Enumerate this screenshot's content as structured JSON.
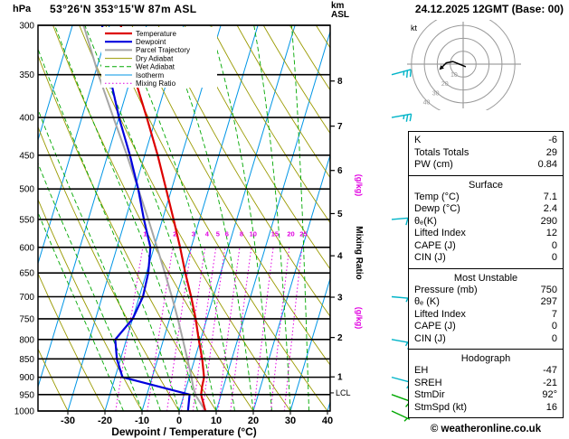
{
  "header": {
    "station": "53°26'N 353°15'W 87m ASL",
    "datetime": "24.12.2025 12GMT (Base: 00)",
    "left_unit": "hPa",
    "right_unit_line1": "km",
    "right_unit_line2": "ASL"
  },
  "footer": {
    "xlabel": "Dewpoint / Temperature (°C)",
    "copyright": "© weatheronline.co.uk"
  },
  "legend": {
    "items": [
      {
        "label": "Temperature",
        "color": "#dd0000",
        "style": "solid",
        "width": 2.2
      },
      {
        "label": "Dewpoint",
        "color": "#0000dd",
        "style": "solid",
        "width": 2.2
      },
      {
        "label": "Parcel Trajectory",
        "color": "#a6a6a6",
        "style": "solid",
        "width": 2
      },
      {
        "label": "Dry Adiabat",
        "color": "#9a9a00",
        "style": "solid",
        "width": 1
      },
      {
        "label": "Wet Adiabat",
        "color": "#00a800",
        "style": "dashed",
        "width": 1
      },
      {
        "label": "Isotherm",
        "color": "#0096e6",
        "style": "solid",
        "width": 1
      },
      {
        "label": "Mixing Ratio",
        "color": "#e100e1",
        "style": "dotted",
        "width": 1
      }
    ]
  },
  "chart_data": {
    "type": "skewt-logp",
    "pressure_axis_hpa": [
      300,
      350,
      400,
      450,
      500,
      550,
      600,
      650,
      700,
      750,
      800,
      850,
      900,
      950,
      1000
    ],
    "temp_axis_c": [
      -30,
      -20,
      -10,
      0,
      10,
      20,
      30,
      40
    ],
    "km_axis": [
      1,
      2,
      3,
      4,
      5,
      6,
      7,
      8
    ],
    "km_pressures": [
      899,
      795,
      701,
      616,
      540,
      472,
      411,
      357
    ],
    "mixing_ratio_gkg": [
      1,
      2,
      3,
      4,
      5,
      6,
      8,
      10,
      15,
      20,
      25
    ],
    "mixing_ratio_axis": {
      "text": "Mixing Ratio",
      "unit": "(g/kg)"
    },
    "lcl": {
      "label": "LCL",
      "pressure": 945
    },
    "dry_adiabats_c": [
      -30,
      -20,
      -10,
      0,
      10,
      20,
      30,
      40,
      50,
      60,
      70,
      80,
      90,
      100,
      110,
      120,
      130,
      140
    ],
    "wet_adiabats_c": [
      -15,
      -10,
      -5,
      0,
      5,
      10,
      15,
      20,
      25,
      30,
      35
    ],
    "profiles": {
      "pressure": [
        1000,
        950,
        925,
        900,
        850,
        800,
        750,
        700,
        650,
        600,
        550,
        500,
        450,
        400,
        350,
        300
      ],
      "temperature": [
        7.1,
        4.6,
        4.2,
        4.0,
        2.0,
        -0.5,
        -3.0,
        -6.0,
        -9.5,
        -13.0,
        -17.0,
        -21.5,
        -26.5,
        -32.5,
        -39.5,
        -47.0
      ],
      "dewpoint": [
        2.4,
        1.5,
        -8.0,
        -18.0,
        -21.0,
        -23.0,
        -20.0,
        -19.0,
        -19.5,
        -21.0,
        -25.0,
        -29.0,
        -34.0,
        -40.0,
        -46.0,
        -52.0
      ],
      "parcel": [
        7.1,
        3.0,
        1.7,
        0.6,
        -2.0,
        -4.8,
        -7.8,
        -11.2,
        -15.0,
        -19.2,
        -23.8,
        -29.0,
        -34.8,
        -41.5,
        -49.0,
        -57.0
      ]
    },
    "wind_barbs": [
      {
        "pressure": 350,
        "dir": 75,
        "speed": 25,
        "color": "#00b4c8"
      },
      {
        "pressure": 400,
        "dir": 80,
        "speed": 25,
        "color": "#00b4c8"
      },
      {
        "pressure": 550,
        "dir": 85,
        "speed": 20,
        "color": "#00b4c8"
      },
      {
        "pressure": 700,
        "dir": 95,
        "speed": 15,
        "color": "#00b4c8"
      },
      {
        "pressure": 800,
        "dir": 100,
        "speed": 15,
        "color": "#00b4c8"
      },
      {
        "pressure": 900,
        "dir": 105,
        "speed": 10,
        "color": "#00b4c8"
      },
      {
        "pressure": 950,
        "dir": 110,
        "speed": 10,
        "color": "#00a800"
      },
      {
        "pressure": 1000,
        "dir": 115,
        "speed": 5,
        "color": "#00a800"
      }
    ],
    "hodograph": {
      "unit_label": "kt",
      "rings_kt": [
        10,
        20,
        30,
        40
      ],
      "trace_uv_kt": [
        [
          2,
          -2
        ],
        [
          -3,
          0
        ],
        [
          -8,
          2
        ],
        [
          -13,
          1
        ],
        [
          -16,
          -2
        ]
      ]
    }
  },
  "panel": {
    "indices": {
      "rows": [
        {
          "label": "K",
          "value": "-6"
        },
        {
          "label": "Totals Totals",
          "value": "29"
        },
        {
          "label": "PW (cm)",
          "value": "0.84"
        }
      ]
    },
    "surface": {
      "title": "Surface",
      "rows": [
        {
          "label": "Temp (°C)",
          "value": "7.1"
        },
        {
          "label": "Dewp (°C)",
          "value": "2.4"
        },
        {
          "label": "θₑ(K)",
          "value": "290"
        },
        {
          "label": "Lifted Index",
          "value": "12"
        },
        {
          "label": "CAPE (J)",
          "value": "0"
        },
        {
          "label": "CIN (J)",
          "value": "0"
        }
      ]
    },
    "most_unstable": {
      "title": "Most Unstable",
      "rows": [
        {
          "label": "Pressure (mb)",
          "value": "750"
        },
        {
          "label": "θₑ (K)",
          "value": "297"
        },
        {
          "label": "Lifted Index",
          "value": "7"
        },
        {
          "label": "CAPE (J)",
          "value": "0"
        },
        {
          "label": "CIN (J)",
          "value": "0"
        }
      ]
    },
    "hodograph_stats": {
      "title": "Hodograph",
      "rows": [
        {
          "label": "EH",
          "value": "-47"
        },
        {
          "label": "SREH",
          "value": "-21"
        },
        {
          "label": "StmDir",
          "value": "92°"
        },
        {
          "label": "StmSpd (kt)",
          "value": "16"
        }
      ]
    }
  }
}
